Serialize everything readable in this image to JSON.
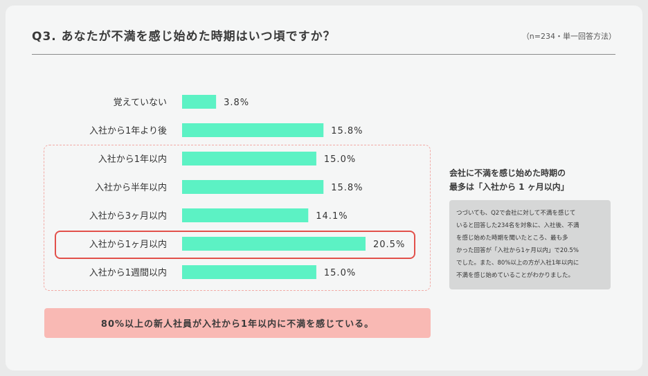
{
  "header": {
    "title": "Q3. あなたが不満を感じ始めた時期はいつ頃ですか？",
    "note": "（n=234・単一回答方法）"
  },
  "colors": {
    "bar": "#5cf2c4",
    "highlight_border": "#e2504a",
    "dashed_border": "#f2aaa5",
    "conclusion_bg": "#f9b9b4",
    "side_body_bg": "#d6d7d7"
  },
  "chart_data": {
    "type": "bar",
    "orientation": "horizontal",
    "categories": [
      "覚えていない",
      "入社から1年より後",
      "入社から1年以内",
      "入社から半年以内",
      "入社から3ヶ月以内",
      "入社から1ヶ月以内",
      "入社から1週間以内"
    ],
    "values": [
      3.8,
      15.8,
      15.0,
      15.8,
      14.1,
      20.5,
      15.0
    ],
    "value_labels": [
      "3.8%",
      "15.8%",
      "15.0%",
      "15.8%",
      "14.1%",
      "20.5%",
      "15.0%"
    ],
    "highlighted_category": "入社から1ヶ月以内",
    "grouped_categories": [
      "入社から1年以内",
      "入社から半年以内",
      "入社から3ヶ月以内",
      "入社から1ヶ月以内",
      "入社から1週間以内"
    ],
    "xlim": [
      0,
      20.5
    ],
    "grid": false
  },
  "conclusion": "80%以上の新人社員が入社から1年以内に不満を感じている。",
  "sidebar": {
    "heading_line1": "会社に不満を感じ始めた時期の",
    "heading_line2": "最多は「入社から 1 ヶ月以内」",
    "body_lines": [
      "つづいても、Q2で会社に対して不満を感じて",
      "いると回答した234名を対象に、入社後、不満",
      "を感じ始めた時期を聞いたところ、最も多",
      "かった回答が「入社から1ヶ月以内」で20.5%",
      "でした。また、80%以上の方が入社1年以内に",
      "不満を感じ始めていることがわかりました。"
    ]
  }
}
